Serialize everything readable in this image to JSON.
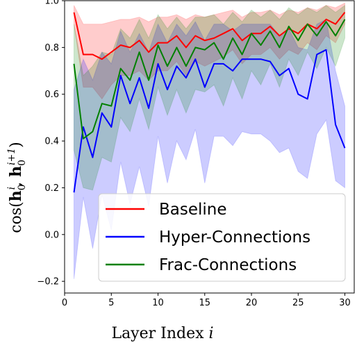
{
  "chart_data": {
    "type": "line",
    "xlabel": "Layer Index i",
    "ylabel": "cos(h0^i, h0^{i+1})",
    "xlim": [
      0,
      31
    ],
    "ylim": [
      -0.25,
      1.0
    ],
    "xticks": [
      0,
      5,
      10,
      15,
      20,
      25,
      30
    ],
    "yticks": [
      -0.2,
      0.0,
      0.2,
      0.4,
      0.6,
      0.8,
      1.0
    ],
    "grid": false,
    "legend_position": "lower-right",
    "x": [
      1,
      2,
      3,
      4,
      5,
      6,
      7,
      8,
      9,
      10,
      11,
      12,
      13,
      14,
      15,
      16,
      17,
      18,
      19,
      20,
      21,
      22,
      23,
      24,
      25,
      26,
      27,
      28,
      29,
      30
    ],
    "series": [
      {
        "name": "Baseline",
        "color": "#ff0000",
        "values": [
          0.95,
          0.77,
          0.77,
          0.75,
          0.78,
          0.81,
          0.8,
          0.83,
          0.78,
          0.82,
          0.82,
          0.85,
          0.8,
          0.85,
          0.83,
          0.84,
          0.86,
          0.88,
          0.83,
          0.86,
          0.86,
          0.89,
          0.85,
          0.88,
          0.86,
          0.9,
          0.88,
          0.92,
          0.9,
          0.95
        ],
        "band_lower": [
          0.9,
          0.63,
          0.63,
          0.58,
          0.64,
          0.68,
          0.68,
          0.7,
          0.66,
          0.7,
          0.7,
          0.74,
          0.68,
          0.74,
          0.72,
          0.74,
          0.76,
          0.79,
          0.73,
          0.77,
          0.77,
          0.8,
          0.75,
          0.79,
          0.77,
          0.82,
          0.79,
          0.85,
          0.82,
          0.9
        ],
        "band_upper": [
          0.98,
          0.9,
          0.9,
          0.9,
          0.91,
          0.92,
          0.92,
          0.93,
          0.91,
          0.93,
          0.93,
          0.94,
          0.92,
          0.94,
          0.93,
          0.94,
          0.95,
          0.96,
          0.93,
          0.95,
          0.95,
          0.96,
          0.94,
          0.96,
          0.95,
          0.97,
          0.96,
          0.98,
          0.97,
          0.99
        ]
      },
      {
        "name": "Hyper-Connections",
        "color": "#0000ff",
        "values": [
          0.18,
          0.46,
          0.33,
          0.52,
          0.46,
          0.68,
          0.56,
          0.67,
          0.54,
          0.73,
          0.62,
          0.72,
          0.67,
          0.75,
          0.63,
          0.73,
          0.73,
          0.7,
          0.75,
          0.75,
          0.75,
          0.74,
          0.68,
          0.71,
          0.6,
          0.58,
          0.77,
          0.79,
          0.47,
          0.37
        ],
        "band_lower": [
          -0.19,
          0.16,
          -0.06,
          0.17,
          0.02,
          0.31,
          0.13,
          0.29,
          0.12,
          0.42,
          0.22,
          0.4,
          0.32,
          0.45,
          0.22,
          0.42,
          0.42,
          0.38,
          0.44,
          0.43,
          0.43,
          0.4,
          0.35,
          0.37,
          0.27,
          0.24,
          0.43,
          0.49,
          0.23,
          0.2
        ],
        "band_upper": [
          0.62,
          0.75,
          0.66,
          0.78,
          0.73,
          0.87,
          0.78,
          0.86,
          0.78,
          0.9,
          0.82,
          0.9,
          0.85,
          0.91,
          0.83,
          0.9,
          0.9,
          0.87,
          0.9,
          0.9,
          0.9,
          0.9,
          0.85,
          0.88,
          0.8,
          0.79,
          0.9,
          0.92,
          0.7,
          0.55
        ]
      },
      {
        "name": "Frac-Connections",
        "color": "#008000",
        "values": [
          0.73,
          0.41,
          0.44,
          0.56,
          0.55,
          0.71,
          0.66,
          0.78,
          0.66,
          0.81,
          0.72,
          0.8,
          0.72,
          0.8,
          0.79,
          0.82,
          0.75,
          0.84,
          0.77,
          0.86,
          0.81,
          0.87,
          0.8,
          0.89,
          0.83,
          0.9,
          0.85,
          0.91,
          0.85,
          0.92
        ],
        "band_lower": [
          0.36,
          0.2,
          0.19,
          0.33,
          0.31,
          0.5,
          0.44,
          0.58,
          0.45,
          0.63,
          0.51,
          0.62,
          0.52,
          0.62,
          0.61,
          0.64,
          0.55,
          0.67,
          0.58,
          0.7,
          0.64,
          0.73,
          0.63,
          0.75,
          0.68,
          0.78,
          0.71,
          0.8,
          0.72,
          0.84
        ],
        "band_upper": [
          0.9,
          0.68,
          0.72,
          0.78,
          0.77,
          0.88,
          0.84,
          0.92,
          0.84,
          0.94,
          0.88,
          0.93,
          0.88,
          0.93,
          0.93,
          0.94,
          0.9,
          0.95,
          0.91,
          0.96,
          0.93,
          0.96,
          0.92,
          0.97,
          0.94,
          0.97,
          0.95,
          0.98,
          0.95,
          0.98
        ]
      }
    ]
  }
}
